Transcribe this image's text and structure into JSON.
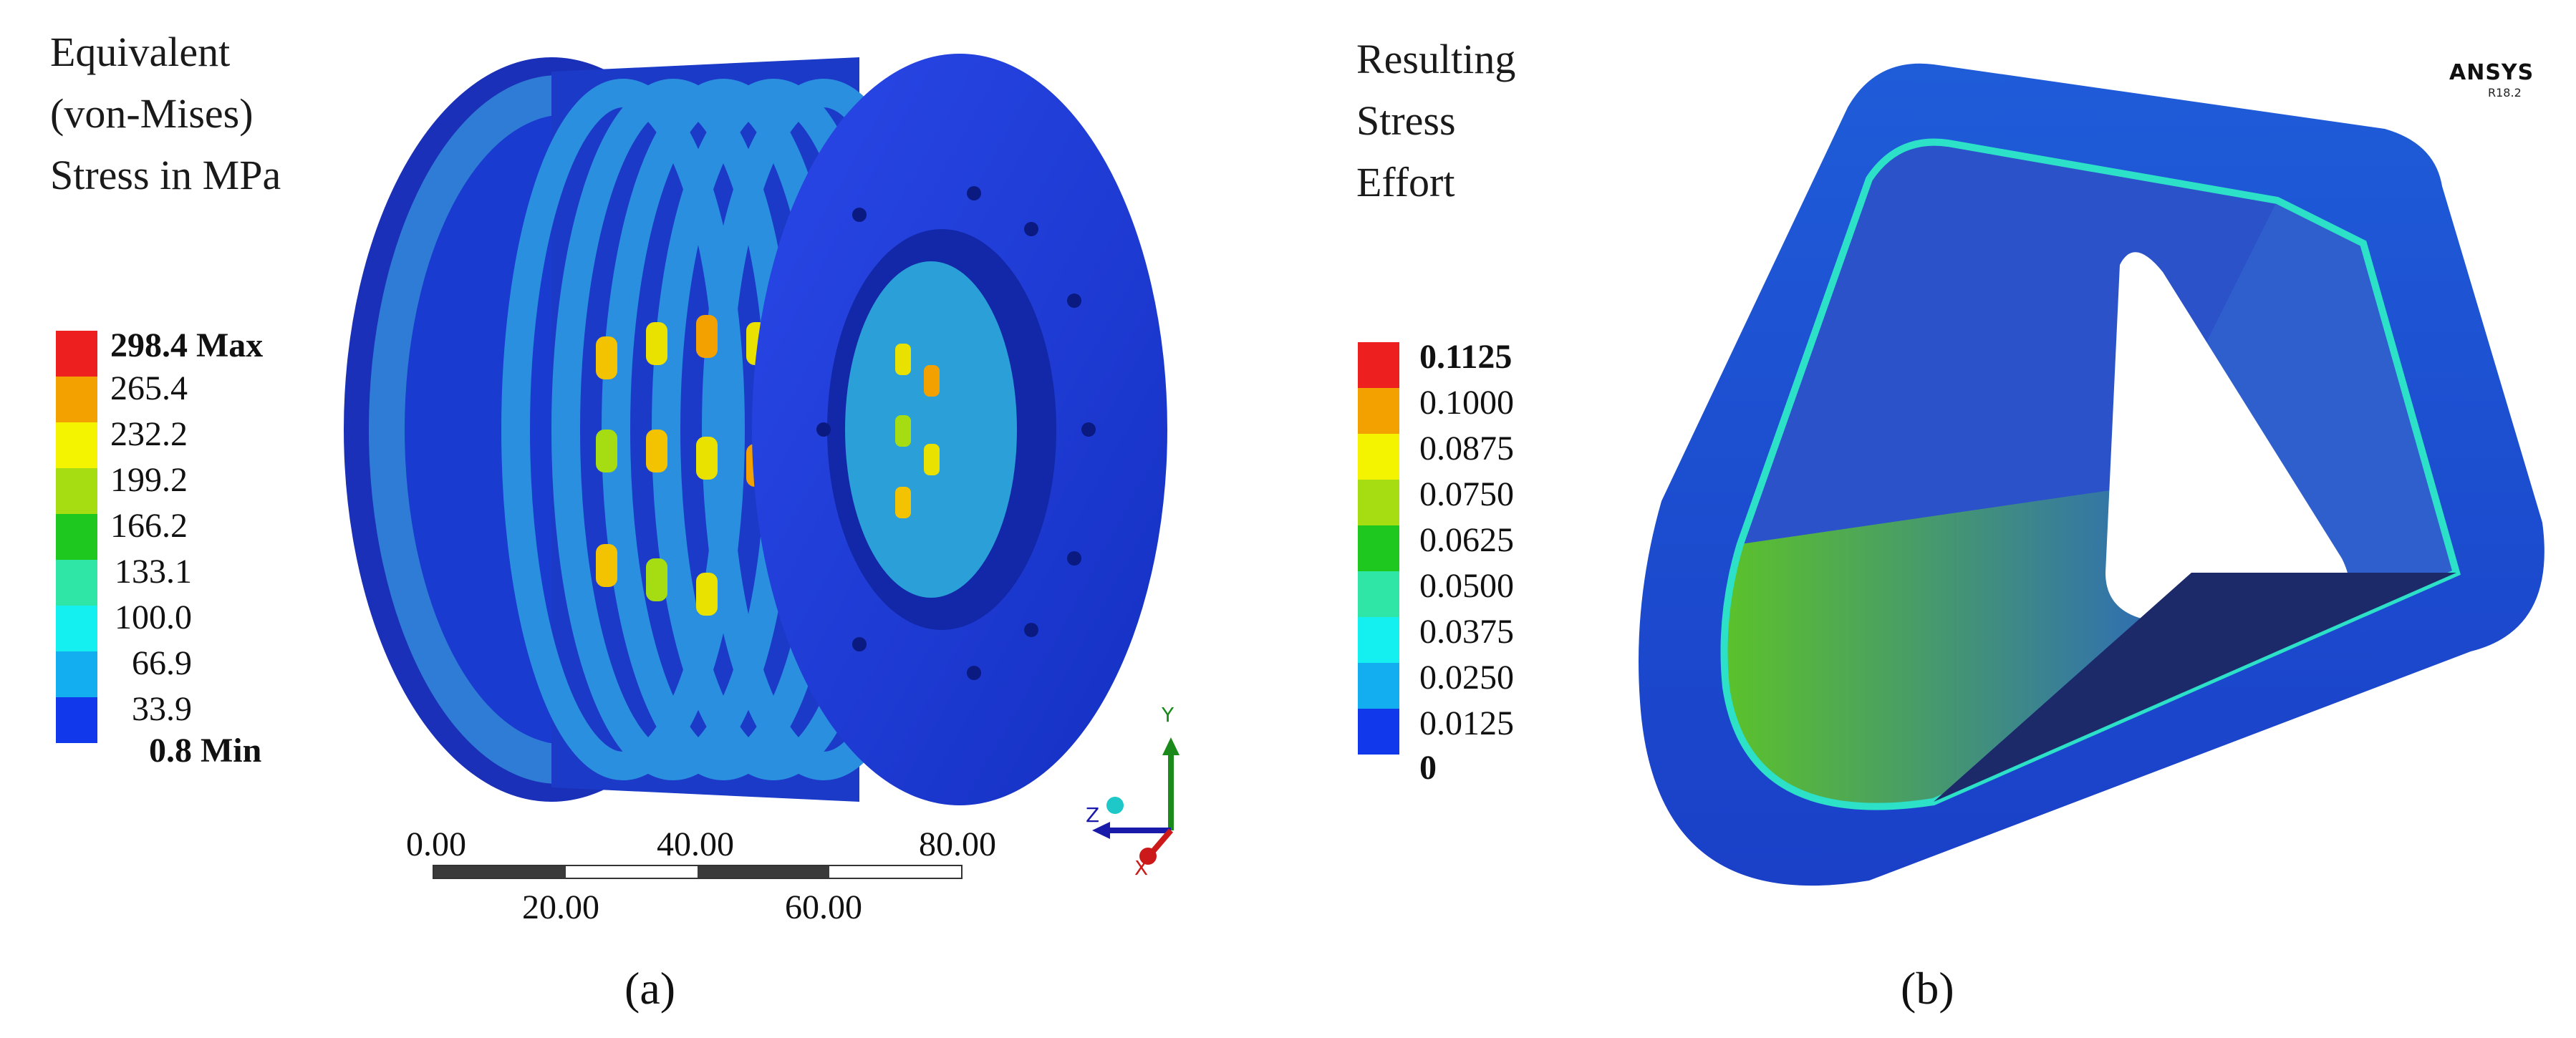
{
  "panel_a": {
    "title_lines": [
      "Equivalent",
      "(von-Mises)",
      "Stress in MPa"
    ],
    "legend": [
      {
        "label": "298.4 Max",
        "color": "#ee1f1f",
        "bold": true
      },
      {
        "label": "265.4",
        "color": "#f3a100",
        "bold": false
      },
      {
        "label": "232.2",
        "color": "#f4f400",
        "bold": false
      },
      {
        "label": "199.2",
        "color": "#a6dd12",
        "bold": false
      },
      {
        "label": "166.2",
        "color": "#1ec81e",
        "bold": false
      },
      {
        "label": "133.1",
        "color": "#2fe6a6",
        "bold": false
      },
      {
        "label": "100.0",
        "color": "#14f0f0",
        "bold": false
      },
      {
        "label": "66.9",
        "color": "#12aef0",
        "bold": false
      },
      {
        "label": "33.9",
        "color": "#1238ec",
        "bold": false
      },
      {
        "label": "0.8 Min",
        "color": null,
        "bold": true
      }
    ],
    "scale_top": [
      "0.00",
      "40.00",
      "80.00"
    ],
    "scale_bottom": [
      "20.00",
      "60.00"
    ],
    "axis": {
      "y": "Y",
      "z": "Z",
      "x": "X"
    },
    "caption": "(a)"
  },
  "panel_b": {
    "title_lines": [
      "Resulting",
      "Stress",
      "Effort"
    ],
    "legend": [
      {
        "label": "0.1125",
        "color": "#ee1f1f",
        "bold": true
      },
      {
        "label": "0.1000",
        "color": "#f3a100",
        "bold": false
      },
      {
        "label": "0.0875",
        "color": "#f4f400",
        "bold": false
      },
      {
        "label": "0.0750",
        "color": "#a6dd12",
        "bold": false
      },
      {
        "label": "0.0625",
        "color": "#1ec81e",
        "bold": false
      },
      {
        "label": "0.0500",
        "color": "#2fe6a6",
        "bold": false
      },
      {
        "label": "0.0375",
        "color": "#14f0f0",
        "bold": false
      },
      {
        "label": "0.0250",
        "color": "#12aef0",
        "bold": false
      },
      {
        "label": "0.0125",
        "color": "#1238ec",
        "bold": false
      },
      {
        "label": "0",
        "color": null,
        "bold": true
      }
    ],
    "brand": "ANSYS",
    "version": "R18.2",
    "caption": "(b)"
  }
}
